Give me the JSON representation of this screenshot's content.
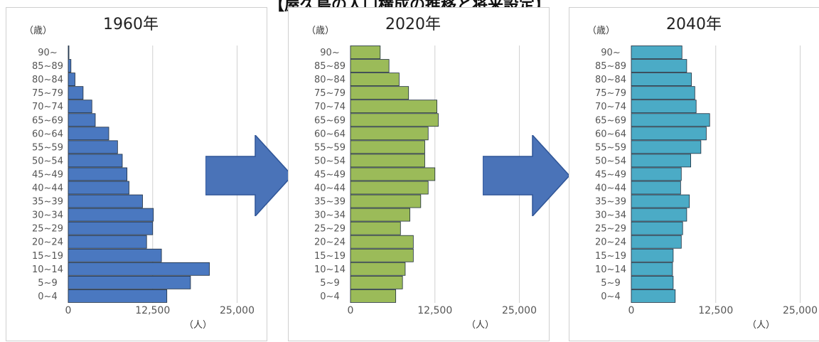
{
  "page_title": "【屋久島の人口構成の推移と将来設定】",
  "age_label": "（歳）",
  "unit_label": "（人）",
  "age_groups": [
    "0~4",
    "5~9",
    "10~14",
    "15~19",
    "20~24",
    "25~29",
    "30~34",
    "35~39",
    "40~44",
    "45~49",
    "50~54",
    "55~59",
    "60~64",
    "65~69",
    "70~74",
    "75~79",
    "80~84",
    "85~89",
    "90~"
  ],
  "x_ticks": [
    "0",
    "12,500",
    "25,000"
  ],
  "colors": {
    "1960": "#4a78c0",
    "2020": "#9bbb59",
    "2040": "#4babc6",
    "arrow": "#4a73b8"
  },
  "chart_data": [
    {
      "type": "bar",
      "title": "1960年",
      "xlim": [
        0,
        25000
      ],
      "categories": [
        "0~4",
        "5~9",
        "10~14",
        "15~19",
        "20~24",
        "25~29",
        "30~34",
        "35~39",
        "40~44",
        "45~49",
        "50~54",
        "55~59",
        "60~64",
        "65~69",
        "70~74",
        "75~79",
        "80~84",
        "85~89",
        "90~"
      ],
      "values": [
        14600,
        18100,
        20900,
        13800,
        11600,
        12500,
        12600,
        11000,
        9000,
        8700,
        8000,
        7300,
        6000,
        4000,
        3500,
        2200,
        1000,
        400,
        100
      ]
    },
    {
      "type": "bar",
      "title": "2020年",
      "xlim": [
        0,
        25000
      ],
      "categories": [
        "0~4",
        "5~9",
        "10~14",
        "15~19",
        "20~24",
        "25~29",
        "30~34",
        "35~39",
        "40~44",
        "45~49",
        "50~54",
        "55~59",
        "60~64",
        "65~69",
        "70~74",
        "75~79",
        "80~84",
        "85~89",
        "90~"
      ],
      "values": [
        6700,
        7700,
        8100,
        9300,
        9300,
        7400,
        8800,
        10400,
        11500,
        12500,
        11000,
        11000,
        11500,
        13000,
        12800,
        8600,
        7200,
        5700,
        4400
      ]
    },
    {
      "type": "bar",
      "title": "2040年",
      "xlim": [
        0,
        25000
      ],
      "categories": [
        "0~4",
        "5~9",
        "10~14",
        "15~19",
        "20~24",
        "25~29",
        "30~34",
        "35~39",
        "40~44",
        "45~49",
        "50~54",
        "55~59",
        "60~64",
        "65~69",
        "70~74",
        "75~79",
        "80~84",
        "85~89",
        "90~"
      ],
      "values": [
        6500,
        6200,
        6100,
        6200,
        7400,
        7600,
        8200,
        8600,
        7300,
        7400,
        8800,
        10300,
        11100,
        11600,
        9600,
        9400,
        8900,
        8200,
        7500
      ]
    }
  ]
}
